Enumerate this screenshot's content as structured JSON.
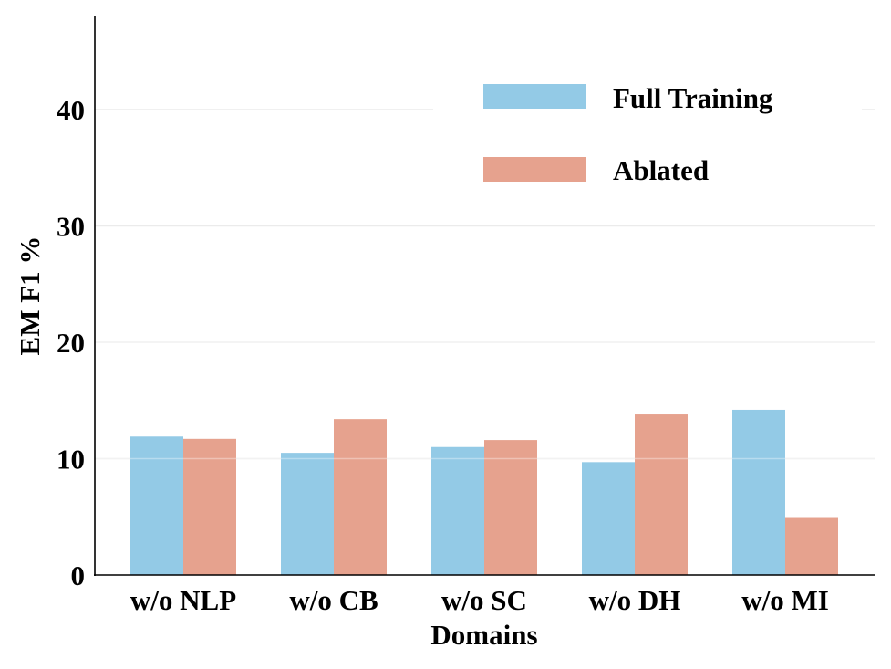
{
  "chart_data": {
    "type": "bar",
    "title": "",
    "xlabel": "Domains",
    "ylabel": "EM F1 %",
    "categories": [
      "w/o NLP",
      "w/o CB",
      "w/o SC",
      "w/o DH",
      "w/o MI"
    ],
    "series": [
      {
        "name": "Full Training",
        "color": "#93cae6",
        "values": [
          11.9,
          10.5,
          11.0,
          9.7,
          14.2
        ]
      },
      {
        "name": "Ablated",
        "color": "#e6a28e",
        "values": [
          11.7,
          13.4,
          11.6,
          13.8,
          4.9
        ]
      }
    ],
    "ylim": [
      0,
      48
    ],
    "yticks": [
      0,
      10,
      20,
      30,
      40
    ],
    "grid": "horizontal",
    "legend_position": "top-right"
  }
}
